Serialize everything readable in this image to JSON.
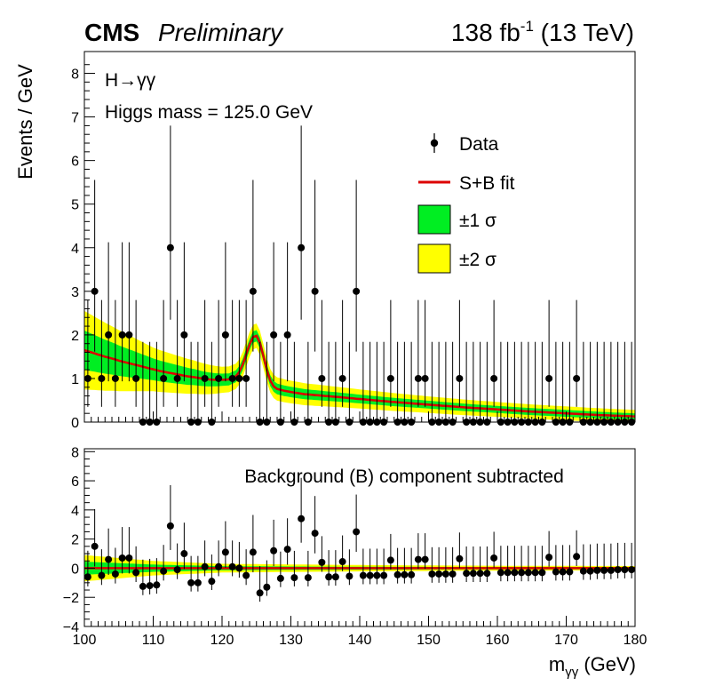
{
  "header": {
    "experiment": "CMS",
    "status": "Preliminary",
    "lumi_value": "138 fb",
    "lumi_exp": "-1",
    "energy": " (13 TeV)"
  },
  "annotations": {
    "channel": "H→γγ",
    "mass": "Higgs mass = 125.0 GeV",
    "lower_title": "Background (B) component subtracted"
  },
  "legend": {
    "data": "Data",
    "fit": "S+B fit",
    "band1": "±1 σ",
    "band2": "±2 σ"
  },
  "colors": {
    "fit_line": "#dd0000",
    "band1": "#00ee22",
    "band2": "#ffff00",
    "data": "#000000"
  },
  "chart_data": [
    {
      "type": "scatter",
      "panel": "main",
      "ylabel": "Events / GeV",
      "xlim": [
        100,
        180
      ],
      "ylim": [
        0,
        8.5
      ],
      "yticks": [
        0,
        1,
        2,
        3,
        4,
        5,
        6,
        7,
        8
      ],
      "x": [
        100.5,
        101.5,
        102.5,
        103.5,
        104.5,
        105.5,
        106.5,
        107.5,
        108.5,
        109.5,
        110.5,
        111.5,
        112.5,
        113.5,
        114.5,
        115.5,
        116.5,
        117.5,
        118.5,
        119.5,
        120.5,
        121.5,
        122.5,
        123.5,
        124.5,
        125.5,
        126.5,
        127.5,
        128.5,
        129.5,
        130.5,
        131.5,
        132.5,
        133.5,
        134.5,
        135.5,
        136.5,
        137.5,
        138.5,
        139.5,
        140.5,
        141.5,
        142.5,
        143.5,
        144.5,
        145.5,
        146.5,
        147.5,
        148.5,
        149.5,
        150.5,
        151.5,
        152.5,
        153.5,
        154.5,
        155.5,
        156.5,
        157.5,
        158.5,
        159.5,
        160.5,
        161.5,
        162.5,
        163.5,
        164.5,
        165.5,
        166.5,
        167.5,
        168.5,
        169.5,
        170.5,
        171.5,
        172.5,
        173.5,
        174.5,
        175.5,
        176.5,
        177.5,
        178.5,
        179.5
      ],
      "series": [
        {
          "name": "Data",
          "values": [
            1,
            3,
            1,
            2,
            1,
            2,
            2,
            1,
            0,
            0,
            0,
            1,
            4,
            1,
            2,
            0,
            0,
            1,
            0,
            1,
            2,
            1,
            1,
            1,
            3,
            0,
            0,
            2,
            0,
            2,
            0,
            4,
            0,
            3,
            1,
            0,
            0,
            1,
            0,
            3,
            0,
            0,
            0,
            0,
            1,
            0,
            0,
            0,
            1,
            1,
            0,
            0,
            0,
            0,
            1,
            0,
            0,
            0,
            0,
            1,
            0,
            0,
            0,
            0,
            0,
            0,
            0,
            1,
            0,
            0,
            0,
            1,
            0,
            0,
            0,
            0,
            0,
            0,
            0,
            0
          ]
        },
        {
          "name": "S+B fit",
          "x": [
            100,
            101,
            102,
            103,
            104,
            105,
            106,
            107,
            108,
            109,
            110,
            111,
            112,
            113,
            114,
            115,
            116,
            117,
            118,
            119,
            120,
            121,
            122,
            122.5,
            123,
            123.5,
            124,
            124.5,
            125,
            125.5,
            126,
            126.5,
            127,
            127.5,
            128,
            129,
            130,
            132,
            135,
            140,
            145,
            150,
            155,
            160,
            165,
            170,
            175,
            180
          ],
          "values": [
            1.65,
            1.6,
            1.55,
            1.5,
            1.46,
            1.41,
            1.37,
            1.33,
            1.29,
            1.25,
            1.21,
            1.17,
            1.14,
            1.11,
            1.08,
            1.05,
            1.03,
            1.0,
            0.98,
            0.97,
            0.97,
            0.98,
            1.05,
            1.15,
            1.32,
            1.55,
            1.78,
            1.95,
            1.98,
            1.82,
            1.52,
            1.2,
            0.95,
            0.82,
            0.76,
            0.72,
            0.69,
            0.64,
            0.6,
            0.53,
            0.46,
            0.4,
            0.34,
            0.29,
            0.24,
            0.2,
            0.16,
            0.13
          ]
        }
      ],
      "band_1sigma_halfwidth": {
        "x": [
          100,
          110,
          120,
          130,
          140,
          150,
          160,
          170,
          180
        ],
        "values": [
          0.45,
          0.25,
          0.14,
          0.12,
          0.1,
          0.09,
          0.08,
          0.08,
          0.07
        ]
      },
      "band_2sigma_halfwidth": {
        "x": [
          100,
          110,
          120,
          130,
          140,
          150,
          160,
          170,
          180
        ],
        "values": [
          0.9,
          0.5,
          0.3,
          0.26,
          0.22,
          0.19,
          0.17,
          0.16,
          0.15
        ]
      }
    },
    {
      "type": "scatter",
      "panel": "ratio",
      "xlabel": "mγγ (GeV)",
      "xlim": [
        100,
        180
      ],
      "ylim": [
        -4,
        8.2
      ],
      "yticks": [
        -4,
        -2,
        0,
        2,
        4,
        6,
        8
      ],
      "xticks": [
        100,
        110,
        120,
        130,
        140,
        150,
        160,
        170,
        180
      ],
      "x": [
        100.5,
        101.5,
        102.5,
        103.5,
        104.5,
        105.5,
        106.5,
        107.5,
        108.5,
        109.5,
        110.5,
        111.5,
        112.5,
        113.5,
        114.5,
        115.5,
        116.5,
        117.5,
        118.5,
        119.5,
        120.5,
        121.5,
        122.5,
        123.5,
        124.5,
        125.5,
        126.5,
        127.5,
        128.5,
        129.5,
        130.5,
        131.5,
        132.5,
        133.5,
        134.5,
        135.5,
        136.5,
        137.5,
        138.5,
        139.5,
        140.5,
        141.5,
        142.5,
        143.5,
        144.5,
        145.5,
        146.5,
        147.5,
        148.5,
        149.5,
        150.5,
        151.5,
        152.5,
        153.5,
        154.5,
        155.5,
        156.5,
        157.5,
        158.5,
        159.5,
        160.5,
        161.5,
        162.5,
        163.5,
        164.5,
        165.5,
        166.5,
        167.5,
        168.5,
        169.5,
        170.5,
        171.5,
        172.5,
        173.5,
        174.5,
        175.5,
        176.5,
        177.5,
        178.5,
        179.5
      ],
      "series": [
        {
          "name": "Data",
          "values": [
            -0.6,
            1.5,
            -0.5,
            0.6,
            -0.4,
            0.7,
            0.7,
            -0.3,
            -1.25,
            -1.2,
            -1.15,
            -0.2,
            2.9,
            -0.1,
            1.0,
            -1.0,
            -1.0,
            0.1,
            -0.9,
            0.1,
            1.1,
            0.1,
            0.0,
            -0.5,
            1.1,
            -1.7,
            -1.3,
            1.2,
            -0.7,
            1.3,
            -0.65,
            3.4,
            -0.65,
            2.4,
            0.4,
            -0.6,
            -0.6,
            0.45,
            -0.55,
            2.5,
            -0.5,
            -0.5,
            -0.5,
            -0.5,
            0.55,
            -0.45,
            -0.45,
            -0.45,
            0.6,
            0.6,
            -0.4,
            -0.4,
            -0.4,
            -0.4,
            0.65,
            -0.35,
            -0.35,
            -0.35,
            -0.35,
            0.7,
            -0.3,
            -0.3,
            -0.3,
            -0.3,
            -0.3,
            -0.3,
            -0.3,
            0.75,
            -0.25,
            -0.25,
            -0.25,
            0.8,
            -0.2,
            -0.2,
            -0.15,
            -0.15,
            -0.15,
            -0.1,
            -0.1,
            -0.1
          ]
        }
      ],
      "band_2sigma_halfwidth": {
        "x": [
          100,
          110,
          120,
          130,
          140,
          150,
          160,
          170,
          180
        ],
        "values": [
          0.9,
          0.5,
          0.3,
          0.26,
          0.22,
          0.19,
          0.17,
          0.16,
          0.15
        ]
      },
      "band_1sigma_halfwidth": {
        "x": [
          100,
          110,
          120,
          130,
          140,
          150,
          160,
          170,
          180
        ],
        "values": [
          0.45,
          0.25,
          0.14,
          0.12,
          0.1,
          0.09,
          0.08,
          0.08,
          0.07
        ]
      }
    }
  ]
}
